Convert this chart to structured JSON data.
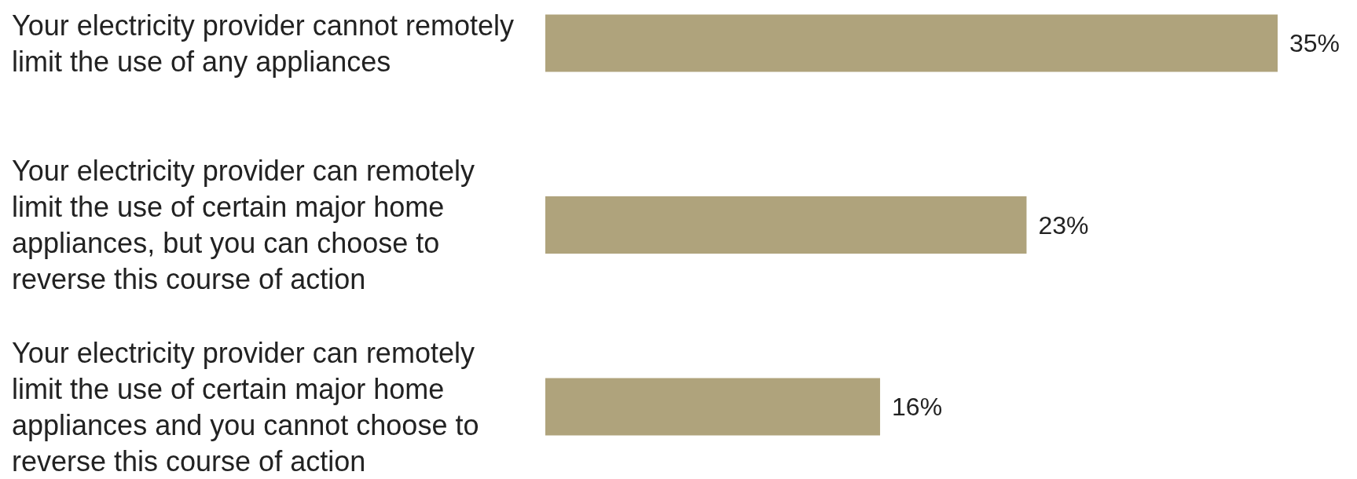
{
  "chart_data": {
    "type": "bar",
    "orientation": "horizontal",
    "categories": [
      "Your electricity provider cannot remotely limit the use of any appliances",
      "Your electricity provider can remotely limit the use of certain major home appliances, but you can choose to reverse this course of action",
      "Your electricity provider can remotely limit the use of certain major home appliances and you cannot choose to reverse this course of action"
    ],
    "values": [
      35,
      23,
      16
    ],
    "value_labels": [
      "35%",
      "23%",
      "16%"
    ],
    "color": "#afa37c"
  }
}
